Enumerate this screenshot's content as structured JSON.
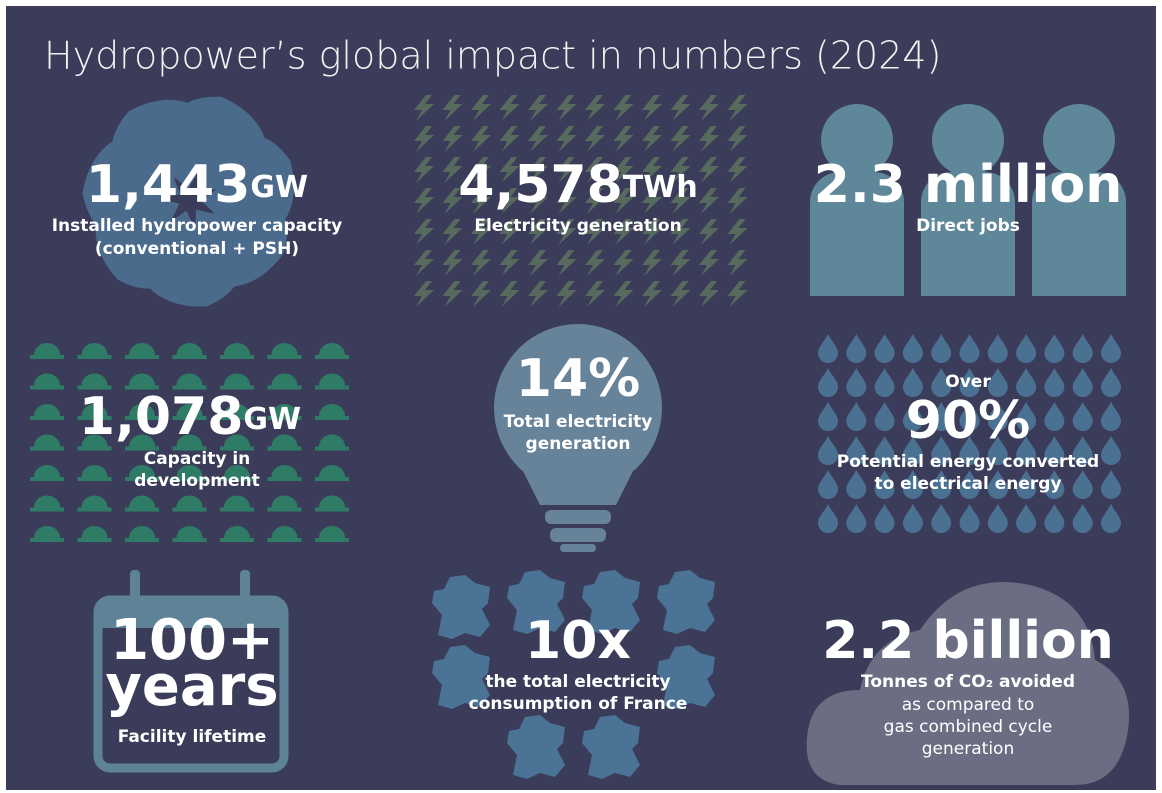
{
  "title": "Hydropower’s global impact in numbers (2024)",
  "stats": [
    {
      "value": "1,443",
      "unit": "GW",
      "label": [
        "Installed hydropower capacity",
        "(conventional + PSH)"
      ]
    },
    {
      "value": "4,578",
      "unit": "TWh",
      "label": [
        "Electricity generation"
      ]
    },
    {
      "value": "2.3 million",
      "label": [
        "Direct jobs"
      ]
    },
    {
      "value": "1,078",
      "unit": "GW",
      "label": [
        "Capacity in",
        "development"
      ]
    },
    {
      "value": "14%",
      "label": [
        "Total electricity",
        "generation"
      ]
    },
    {
      "prefix": "Over",
      "value": "90%",
      "label": [
        "Potential energy converted",
        "to electrical energy"
      ]
    },
    {
      "value": "100+",
      "value_line2": "years",
      "label": [
        "Facility lifetime"
      ]
    },
    {
      "value": "10x",
      "label": [
        "the total electricity",
        "consumption of France"
      ]
    },
    {
      "value": "2.2 billion",
      "label": [
        "Tonnes of CO₂ avoided"
      ],
      "note": [
        "as compared to",
        "gas combined cycle",
        "generation"
      ]
    }
  ]
}
